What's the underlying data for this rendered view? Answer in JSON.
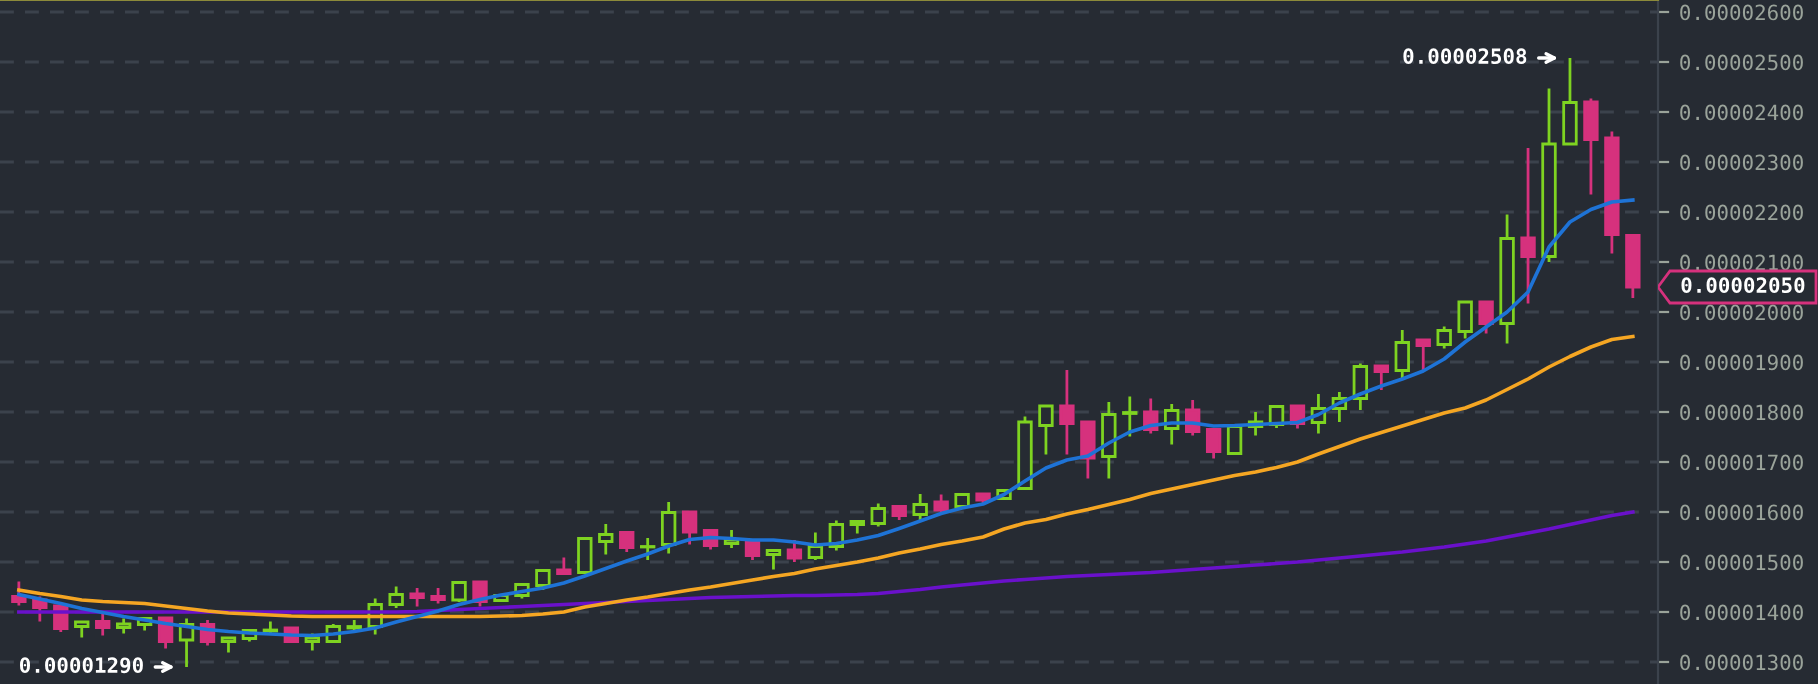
{
  "chart_data": {
    "type": "candlestick",
    "categories": [
      null,
      null,
      null,
      null,
      null,
      null,
      null,
      null,
      null,
      null,
      null,
      null,
      null,
      null,
      null,
      null,
      null,
      null,
      null,
      null,
      null,
      null,
      null,
      null,
      null,
      null,
      null,
      null,
      null,
      null,
      null,
      null,
      null,
      null,
      null,
      null,
      null,
      null,
      null,
      null,
      null,
      null,
      null,
      null,
      null,
      null,
      null,
      null,
      null,
      null,
      null,
      null,
      null,
      null,
      null,
      null,
      null,
      null,
      null,
      null,
      null,
      null,
      null,
      null,
      null,
      null,
      null,
      null,
      null,
      null,
      null,
      null,
      null,
      null,
      null,
      null,
      null,
      null
    ],
    "ohlc": [
      [
        1.431e-05,
        1.461e-05,
        1.413e-05,
        1.421e-05
      ],
      [
        1.424e-05,
        1.431e-05,
        1.381e-05,
        1.409e-05
      ],
      [
        1.412e-05,
        1.412e-05,
        1.36e-05,
        1.367e-05
      ],
      [
        1.371e-05,
        1.38e-05,
        1.349e-05,
        1.38e-05
      ],
      [
        1.381e-05,
        1.4e-05,
        1.353e-05,
        1.369e-05
      ],
      [
        1.369e-05,
        1.387e-05,
        1.357e-05,
        1.376e-05
      ],
      [
        1.375e-05,
        1.387e-05,
        1.363e-05,
        1.387e-05
      ],
      [
        1.388e-05,
        1.388e-05,
        1.327e-05,
        1.341e-05
      ],
      [
        1.344e-05,
        1.387e-05,
        1.29e-05,
        1.375e-05
      ],
      [
        1.375e-05,
        1.384e-05,
        1.333e-05,
        1.341e-05
      ],
      [
        1.341e-05,
        1.348e-05,
        1.319e-05,
        1.348e-05
      ],
      [
        1.347e-05,
        1.363e-05,
        1.341e-05,
        1.363e-05
      ],
      [
        1.362e-05,
        1.381e-05,
        1.357e-05,
        1.364e-05
      ],
      [
        1.368e-05,
        1.368e-05,
        1.341e-05,
        1.341e-05
      ],
      [
        1.341e-05,
        1.357e-05,
        1.323e-05,
        1.348e-05
      ],
      [
        1.341e-05,
        1.376e-05,
        1.339e-05,
        1.371e-05
      ],
      [
        1.368e-05,
        1.384e-05,
        1.364e-05,
        1.371e-05
      ],
      [
        1.371e-05,
        1.427e-05,
        1.355e-05,
        1.415e-05
      ],
      [
        1.415e-05,
        1.451e-05,
        1.408e-05,
        1.435e-05
      ],
      [
        1.436e-05,
        1.448e-05,
        1.411e-05,
        1.429e-05
      ],
      [
        1.431e-05,
        1.448e-05,
        1.417e-05,
        1.425e-05
      ],
      [
        1.424e-05,
        1.459e-05,
        1.42e-05,
        1.459e-05
      ],
      [
        1.46e-05,
        1.46e-05,
        1.411e-05,
        1.421e-05
      ],
      [
        1.423e-05,
        1.433e-05,
        1.42e-05,
        1.433e-05
      ],
      [
        1.433e-05,
        1.455e-05,
        1.427e-05,
        1.455e-05
      ],
      [
        1.453e-05,
        1.483e-05,
        1.444e-05,
        1.483e-05
      ],
      [
        1.484e-05,
        1.509e-05,
        1.477e-05,
        1.477e-05
      ],
      [
        1.479e-05,
        1.547e-05,
        1.479e-05,
        1.547e-05
      ],
      [
        1.541e-05,
        1.576e-05,
        1.515e-05,
        1.555e-05
      ],
      [
        1.559e-05,
        1.559e-05,
        1.52e-05,
        1.529e-05
      ],
      [
        1.53e-05,
        1.548e-05,
        1.504e-05,
        1.531e-05
      ],
      [
        1.535e-05,
        1.62e-05,
        1.517e-05,
        1.599e-05
      ],
      [
        1.6e-05,
        1.6e-05,
        1.535e-05,
        1.56e-05
      ],
      [
        1.563e-05,
        1.563e-05,
        1.525e-05,
        1.533e-05
      ],
      [
        1.537e-05,
        1.564e-05,
        1.528e-05,
        1.544e-05
      ],
      [
        1.54e-05,
        1.54e-05,
        1.504e-05,
        1.513e-05
      ],
      [
        1.515e-05,
        1.523e-05,
        1.485e-05,
        1.523e-05
      ],
      [
        1.524e-05,
        1.544e-05,
        1.5e-05,
        1.508e-05
      ],
      [
        1.509e-05,
        1.559e-05,
        1.504e-05,
        1.531e-05
      ],
      [
        1.531e-05,
        1.583e-05,
        1.523e-05,
        1.575e-05
      ],
      [
        1.575e-05,
        1.581e-05,
        1.557e-05,
        1.581e-05
      ],
      [
        1.577e-05,
        1.617e-05,
        1.571e-05,
        1.607e-05
      ],
      [
        1.611e-05,
        1.611e-05,
        1.584e-05,
        1.593e-05
      ],
      [
        1.595e-05,
        1.636e-05,
        1.583e-05,
        1.615e-05
      ],
      [
        1.62e-05,
        1.635e-05,
        1.6e-05,
        1.604e-05
      ],
      [
        1.611e-05,
        1.635e-05,
        1.608e-05,
        1.635e-05
      ],
      [
        1.636e-05,
        1.636e-05,
        1.617e-05,
        1.624e-05
      ],
      [
        1.627e-05,
        1.643e-05,
        1.627e-05,
        1.643e-05
      ],
      [
        1.647e-05,
        1.791e-05,
        1.647e-05,
        1.78e-05
      ],
      [
        1.773e-05,
        1.812e-05,
        1.715e-05,
        1.812e-05
      ],
      [
        1.812e-05,
        1.884e-05,
        1.715e-05,
        1.777e-05
      ],
      [
        1.78e-05,
        1.78e-05,
        1.667e-05,
        1.708e-05
      ],
      [
        1.711e-05,
        1.82e-05,
        1.667e-05,
        1.795e-05
      ],
      [
        1.797e-05,
        1.831e-05,
        1.751e-05,
        1.799e-05
      ],
      [
        1.8e-05,
        1.827e-05,
        1.757e-05,
        1.765e-05
      ],
      [
        1.767e-05,
        1.816e-05,
        1.735e-05,
        1.803e-05
      ],
      [
        1.804e-05,
        1.824e-05,
        1.753e-05,
        1.761e-05
      ],
      [
        1.765e-05,
        1.765e-05,
        1.707e-05,
        1.721e-05
      ],
      [
        1.717e-05,
        1.771e-05,
        1.717e-05,
        1.771e-05
      ],
      [
        1.771e-05,
        1.8e-05,
        1.753e-05,
        1.78e-05
      ],
      [
        1.775e-05,
        1.811e-05,
        1.768e-05,
        1.811e-05
      ],
      [
        1.812e-05,
        1.812e-05,
        1.767e-05,
        1.777e-05
      ],
      [
        1.779e-05,
        1.836e-05,
        1.757e-05,
        1.807e-05
      ],
      [
        1.807e-05,
        1.84e-05,
        1.78e-05,
        1.827e-05
      ],
      [
        1.827e-05,
        1.897e-05,
        1.804e-05,
        1.891e-05
      ],
      [
        1.892e-05,
        1.892e-05,
        1.844e-05,
        1.881e-05
      ],
      [
        1.883e-05,
        1.964e-05,
        1.867e-05,
        1.939e-05
      ],
      [
        1.944e-05,
        1.944e-05,
        1.883e-05,
        1.933e-05
      ],
      [
        1.935e-05,
        1.971e-05,
        1.927e-05,
        1.963e-05
      ],
      [
        1.961e-05,
        2.02e-05,
        1.947e-05,
        2.02e-05
      ],
      [
        2.02e-05,
        2.02e-05,
        1.957e-05,
        1.977e-05
      ],
      [
        1.977e-05,
        2.195e-05,
        1.937e-05,
        2.147e-05
      ],
      [
        2.148e-05,
        2.328e-05,
        2.017e-05,
        2.111e-05
      ],
      [
        2.111e-05,
        2.447e-05,
        2.1e-05,
        2.336e-05
      ],
      [
        2.336e-05,
        2.508e-05,
        2.336e-05,
        2.419e-05
      ],
      [
        2.42e-05,
        2.427e-05,
        2.235e-05,
        2.345e-05
      ],
      [
        2.348e-05,
        2.361e-05,
        2.117e-05,
        2.155e-05
      ],
      [
        2.153e-05,
        2.153e-05,
        2.028e-05,
        2.05e-05
      ]
    ],
    "colors": [
      "#d6317d",
      "#d6317d",
      "#d6317d",
      "#7ed321",
      "#d6317d",
      "#7ed321",
      "#7ed321",
      "#d6317d",
      "#7ed321",
      "#d6317d",
      "#7ed321",
      "#7ed321",
      "#7ed321",
      "#d6317d",
      "#7ed321",
      "#7ed321",
      "#7ed321",
      "#7ed321",
      "#7ed321",
      "#d6317d",
      "#d6317d",
      "#7ed321",
      "#d6317d",
      "#7ed321",
      "#7ed321",
      "#7ed321",
      "#d6317d",
      "#7ed321",
      "#7ed321",
      "#d6317d",
      "#7ed321",
      "#7ed321",
      "#d6317d",
      "#d6317d",
      "#7ed321",
      "#d6317d",
      "#7ed321",
      "#d6317d",
      "#7ed321",
      "#7ed321",
      "#7ed321",
      "#7ed321",
      "#d6317d",
      "#7ed321",
      "#d6317d",
      "#7ed321",
      "#d6317d",
      "#7ed321",
      "#7ed321",
      "#7ed321",
      "#d6317d",
      "#d6317d",
      "#7ed321",
      "#7ed321",
      "#d6317d",
      "#7ed321",
      "#d6317d",
      "#d6317d",
      "#7ed321",
      "#7ed321",
      "#7ed321",
      "#d6317d",
      "#7ed321",
      "#7ed321",
      "#7ed321",
      "#d6317d",
      "#7ed321",
      "#d6317d",
      "#7ed321",
      "#7ed321",
      "#d6317d",
      "#7ed321",
      "#d6317d",
      "#7ed321",
      "#7ed321",
      "#d6317d",
      "#d6317d",
      "#d6317d"
    ],
    "series": [
      {
        "type": "line",
        "color": "#6a11cb",
        "values": [
          1.4e-05,
          1.4e-05,
          1.4e-05,
          1.4e-05,
          1.4e-05,
          1.4e-05,
          1.4e-05,
          1.4e-05,
          1.4e-05,
          1.4e-05,
          1.4e-05,
          1.4e-05,
          1.4e-05,
          1.4e-05,
          1.4e-05,
          1.4e-05,
          1.4e-05,
          1.4e-05,
          1.4e-05,
          1.401e-05,
          1.403e-05,
          1.405e-05,
          1.407e-05,
          1.409e-05,
          1.411e-05,
          1.413e-05,
          1.415e-05,
          1.417e-05,
          1.419e-05,
          1.421e-05,
          1.423e-05,
          1.425e-05,
          1.427e-05,
          1.429e-05,
          1.43e-05,
          1.431e-05,
          1.432e-05,
          1.433e-05,
          1.433e-05,
          1.434e-05,
          1.435e-05,
          1.437e-05,
          1.441e-05,
          1.445e-05,
          1.45e-05,
          1.454e-05,
          1.458e-05,
          1.462e-05,
          1.465e-05,
          1.468e-05,
          1.471e-05,
          1.473e-05,
          1.475e-05,
          1.477e-05,
          1.479e-05,
          1.482e-05,
          1.485e-05,
          1.488e-05,
          1.491e-05,
          1.494e-05,
          1.497e-05,
          1.5e-05,
          1.504e-05,
          1.508e-05,
          1.512e-05,
          1.516e-05,
          1.52e-05,
          1.525e-05,
          1.53e-05,
          1.536e-05,
          1.542e-05,
          1.55e-05,
          1.558e-05,
          1.566e-05,
          1.575e-05,
          1.584e-05,
          1.593e-05,
          1.6e-05
        ]
      },
      {
        "type": "line",
        "color": "#f5a623",
        "values": [
          1.444e-05,
          1.437e-05,
          1.431e-05,
          1.424e-05,
          1.421e-05,
          1.419e-05,
          1.417e-05,
          1.412e-05,
          1.407e-05,
          1.402e-05,
          1.398e-05,
          1.396e-05,
          1.394e-05,
          1.392e-05,
          1.391e-05,
          1.391e-05,
          1.391e-05,
          1.391e-05,
          1.391e-05,
          1.391e-05,
          1.391e-05,
          1.391e-05,
          1.391e-05,
          1.392e-05,
          1.393e-05,
          1.396e-05,
          1.4e-05,
          1.41e-05,
          1.417e-05,
          1.424e-05,
          1.43e-05,
          1.437e-05,
          1.444e-05,
          1.45e-05,
          1.457e-05,
          1.464e-05,
          1.471e-05,
          1.477e-05,
          1.486e-05,
          1.493e-05,
          1.5e-05,
          1.508e-05,
          1.518e-05,
          1.526e-05,
          1.535e-05,
          1.542e-05,
          1.55e-05,
          1.566e-05,
          1.578e-05,
          1.585e-05,
          1.596e-05,
          1.605e-05,
          1.615e-05,
          1.625e-05,
          1.637e-05,
          1.646e-05,
          1.655e-05,
          1.664e-05,
          1.673e-05,
          1.68e-05,
          1.689e-05,
          1.7e-05,
          1.716e-05,
          1.731e-05,
          1.746e-05,
          1.759e-05,
          1.772e-05,
          1.785e-05,
          1.798e-05,
          1.808e-05,
          1.824e-05,
          1.845e-05,
          1.866e-05,
          1.89e-05,
          1.911e-05,
          1.93e-05,
          1.945e-05,
          1.951e-05
        ]
      },
      {
        "type": "line",
        "color": "#1e73d6",
        "values": [
          1.435e-05,
          1.426e-05,
          1.417e-05,
          1.407e-05,
          1.399e-05,
          1.391e-05,
          1.384e-05,
          1.377e-05,
          1.371e-05,
          1.365e-05,
          1.361e-05,
          1.358e-05,
          1.356e-05,
          1.354e-05,
          1.353e-05,
          1.356e-05,
          1.361e-05,
          1.368e-05,
          1.38e-05,
          1.391e-05,
          1.402e-05,
          1.415e-05,
          1.425e-05,
          1.434e-05,
          1.441e-05,
          1.448e-05,
          1.458e-05,
          1.472e-05,
          1.487e-05,
          1.502e-05,
          1.516e-05,
          1.532e-05,
          1.545e-05,
          1.549e-05,
          1.547e-05,
          1.544e-05,
          1.544e-05,
          1.54e-05,
          1.534e-05,
          1.537e-05,
          1.544e-05,
          1.553e-05,
          1.567e-05,
          1.582e-05,
          1.597e-05,
          1.608e-05,
          1.616e-05,
          1.635e-05,
          1.662e-05,
          1.688e-05,
          1.704e-05,
          1.712e-05,
          1.738e-05,
          1.76e-05,
          1.773e-05,
          1.778e-05,
          1.778e-05,
          1.772e-05,
          1.773e-05,
          1.775e-05,
          1.777e-05,
          1.779e-05,
          1.795e-05,
          1.818e-05,
          1.836e-05,
          1.852e-05,
          1.866e-05,
          1.882e-05,
          1.906e-05,
          1.94e-05,
          1.97e-05,
          2e-05,
          2.04e-05,
          2.13e-05,
          2.18e-05,
          2.205e-05,
          2.22e-05,
          2.224e-05
        ]
      }
    ],
    "ylim": [
      1.256e-05,
      2.624e-05
    ],
    "yticks": [
      {
        "value": 1.3e-05,
        "label": "0.00001300"
      },
      {
        "value": 1.4e-05,
        "label": "0.00001400"
      },
      {
        "value": 1.5e-05,
        "label": "0.00001500"
      },
      {
        "value": 1.6e-05,
        "label": "0.00001600"
      },
      {
        "value": 1.7e-05,
        "label": "0.00001700"
      },
      {
        "value": 1.8e-05,
        "label": "0.00001800"
      },
      {
        "value": 1.9e-05,
        "label": "0.00001900"
      },
      {
        "value": 2e-05,
        "label": "0.00002000"
      },
      {
        "value": 2.1e-05,
        "label": "0.00002100"
      },
      {
        "value": 2.2e-05,
        "label": "0.00002200"
      },
      {
        "value": 2.3e-05,
        "label": "0.00002300"
      },
      {
        "value": 2.4e-05,
        "label": "0.00002400"
      },
      {
        "value": 2.5e-05,
        "label": "0.00002500"
      },
      {
        "value": 2.6e-05,
        "label": "0.00002600"
      }
    ],
    "grid": "y",
    "tick_labels": "y",
    "annotations": [
      "0.00002508",
      "0.00001290",
      "0.00002050"
    ]
  }
}
